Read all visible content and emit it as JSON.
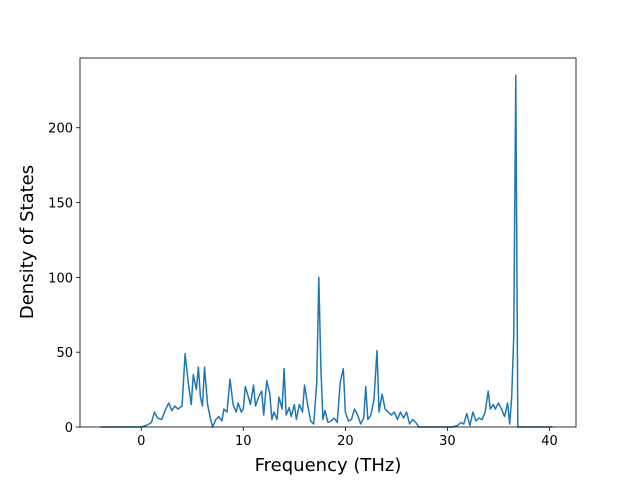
{
  "chart_data": {
    "type": "line",
    "xlabel": "Frequency (THz)",
    "ylabel": "Density of States",
    "x": [
      -4,
      -2,
      0,
      0.5,
      1,
      1.3,
      1.6,
      2,
      2.4,
      2.7,
      3,
      3.3,
      3.6,
      4,
      4.3,
      4.6,
      4.9,
      5.1,
      5.4,
      5.6,
      5.8,
      6,
      6.2,
      6.5,
      6.8,
      7,
      7.3,
      7.6,
      7.9,
      8.1,
      8.4,
      8.7,
      9,
      9.3,
      9.5,
      9.8,
      10,
      10.2,
      10.5,
      10.7,
      11,
      11.2,
      11.5,
      11.8,
      12,
      12.3,
      12.6,
      12.8,
      13,
      13.3,
      13.5,
      13.8,
      14,
      14.2,
      14.5,
      14.7,
      15,
      15.2,
      15.5,
      15.8,
      16,
      16.3,
      16.6,
      16.9,
      17.2,
      17.4,
      17.6,
      17.8,
      18,
      18.3,
      18.6,
      18.9,
      19.2,
      19.5,
      19.8,
      20,
      20.3,
      20.6,
      20.9,
      21.2,
      21.5,
      21.8,
      22,
      22.2,
      22.5,
      22.8,
      23.1,
      23.3,
      23.6,
      23.9,
      24.2,
      24.5,
      24.8,
      25.1,
      25.4,
      25.7,
      26,
      26.3,
      26.6,
      26.9,
      27.2,
      29,
      30.5,
      31,
      31.3,
      31.6,
      31.9,
      32.2,
      32.5,
      32.8,
      33.1,
      33.4,
      33.7,
      34,
      34.2,
      34.5,
      34.7,
      35,
      35.3,
      35.6,
      35.9,
      36.1,
      36.3,
      36.5,
      36.7,
      36.9,
      38,
      40.3
    ],
    "series": [
      {
        "color": "#1f77b4",
        "values": [
          0,
          0,
          0,
          1,
          3,
          10,
          6,
          5,
          12,
          16,
          11,
          14,
          12,
          14,
          49,
          30,
          15,
          35,
          25,
          40,
          20,
          14,
          40,
          15,
          5,
          0,
          5,
          7,
          4,
          12,
          10,
          32,
          15,
          10,
          16,
          10,
          12,
          27,
          20,
          15,
          28,
          14,
          20,
          24,
          8,
          31,
          22,
          5,
          10,
          5,
          20,
          12,
          39,
          8,
          13,
          7,
          15,
          5,
          15,
          10,
          28,
          15,
          4,
          2,
          30,
          100,
          40,
          5,
          11,
          3,
          4,
          6,
          3,
          30,
          39,
          10,
          4,
          5,
          12,
          8,
          2,
          6,
          27,
          5,
          8,
          18,
          51,
          10,
          22,
          12,
          10,
          8,
          10,
          5,
          10,
          6,
          10,
          2,
          5,
          3,
          0,
          0,
          0,
          1,
          3,
          2,
          9,
          1,
          10,
          4,
          6,
          5,
          10,
          24,
          12,
          15,
          12,
          16,
          12,
          7,
          16,
          2,
          20,
          60,
          235,
          0,
          0,
          0
        ]
      }
    ],
    "xlim": [
      -6.0,
      42.6
    ],
    "ylim": [
      0,
      246.6
    ],
    "xticks": [
      0,
      10,
      20,
      30,
      40
    ],
    "yticks": [
      0,
      50,
      100,
      150,
      200
    ]
  }
}
